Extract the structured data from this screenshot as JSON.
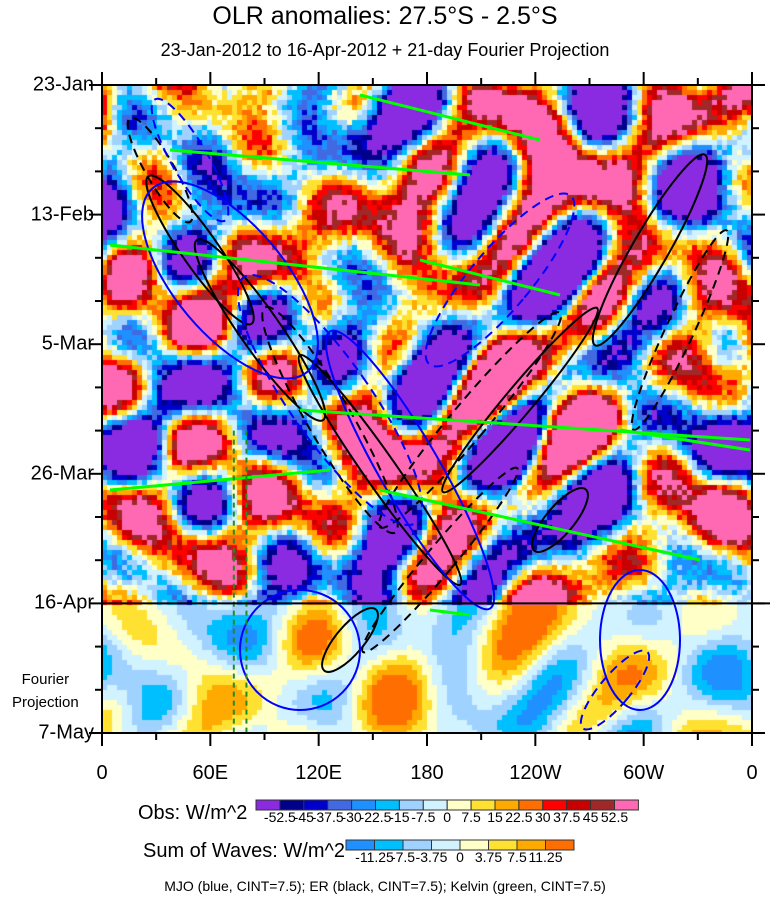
{
  "chart_data": {
    "type": "heatmap",
    "title": "OLR anomalies: 27.5°S - 2.5°S",
    "subtitle": "23-Jan-2012 to 16-Apr-2012 + 21-day Fourier Projection",
    "xlabel": "",
    "ylabel": "",
    "x_ticks": [
      "0",
      "60E",
      "120E",
      "180",
      "120W",
      "60W",
      "0"
    ],
    "x_range_deg": [
      0,
      360
    ],
    "y_ticks": [
      "23-Jan",
      "13-Feb",
      "5-Mar",
      "26-Mar",
      "16-Apr",
      "7-May"
    ],
    "y_range_days": [
      0,
      105
    ],
    "projection_start_day": 84,
    "projection_label": [
      "Fourier",
      "Projection"
    ],
    "obs_colorbar": {
      "label": "Obs: W/m^2",
      "levels": [
        "-52.5",
        "-45",
        "-37.5",
        "-30",
        "-22.5",
        "-15",
        "-7.5",
        "0",
        "7.5",
        "15",
        "22.5",
        "30",
        "37.5",
        "45",
        "52.5"
      ],
      "colors": [
        "#8a2be2",
        "#00008b",
        "#0000cd",
        "#4169e1",
        "#1e90ff",
        "#00bfff",
        "#a0d2ff",
        "#d1f2ff",
        "#ffffc8",
        "#ffe132",
        "#ffaa00",
        "#ff6e00",
        "#ff0000",
        "#c80000",
        "#a02828",
        "#ff69b4"
      ]
    },
    "waves_colorbar": {
      "label": "Sum of Waves: W/m^2",
      "levels": [
        "-11.25",
        "-7.5",
        "-3.75",
        "0",
        "3.75",
        "7.5",
        "11.25"
      ],
      "colors": [
        "#1e90ff",
        "#00bfff",
        "#a0d2ff",
        "#d1f2ff",
        "#ffffc8",
        "#ffe132",
        "#ffaa00",
        "#ff6e00"
      ]
    },
    "contour_note": "MJO (blue, CINT=7.5); ER (black, CINT=7.5); Kelvin (green, CINT=7.5)",
    "series_colors": {
      "mjo": "#0000ff",
      "er": "#000000",
      "kelvin": "#00ff00",
      "reference_lines": "#228b22"
    },
    "reference_lon_deg": [
      73,
      80
    ]
  }
}
